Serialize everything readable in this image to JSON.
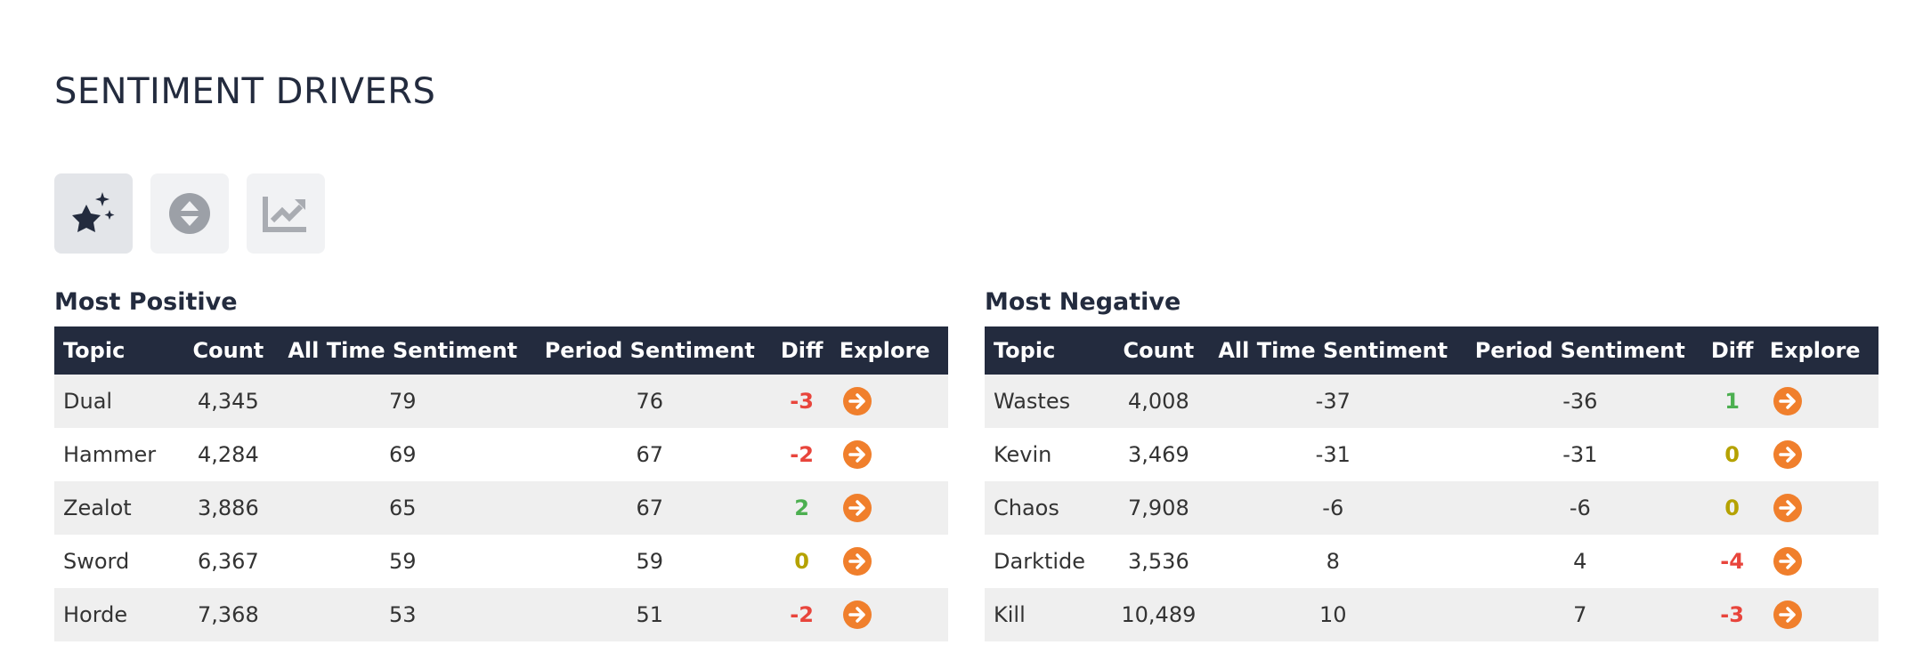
{
  "header": {
    "title": "SENTIMENT DRIVERS"
  },
  "tables": [
    {
      "title": "Most Positive",
      "columns": [
        "Topic",
        "Count",
        "All Time Sentiment",
        "Period Sentiment",
        "Diff",
        "Explore"
      ],
      "rows": [
        [
          "Dual",
          "4,345",
          "79",
          "76",
          "-3"
        ],
        [
          "Hammer",
          "4,284",
          "69",
          "67",
          "-2"
        ],
        [
          "Zealot",
          "3,886",
          "65",
          "67",
          "2"
        ],
        [
          "Sword",
          "6,367",
          "59",
          "59",
          "0"
        ],
        [
          "Horde",
          "7,368",
          "53",
          "51",
          "-2"
        ]
      ]
    },
    {
      "title": "Most Negative",
      "columns": [
        "Topic",
        "Count",
        "All Time Sentiment",
        "Period Sentiment",
        "Diff",
        "Explore"
      ],
      "rows": [
        [
          "Wastes",
          "4,008",
          "-37",
          "-36",
          "1"
        ],
        [
          "Kevin",
          "3,469",
          "-31",
          "-31",
          "0"
        ],
        [
          "Chaos",
          "7,908",
          "-6",
          "-6",
          "0"
        ],
        [
          "Darktide",
          "3,536",
          "8",
          "4",
          "-4"
        ],
        [
          "Kill",
          "10,489",
          "10",
          "7",
          "-3"
        ]
      ]
    }
  ]
}
